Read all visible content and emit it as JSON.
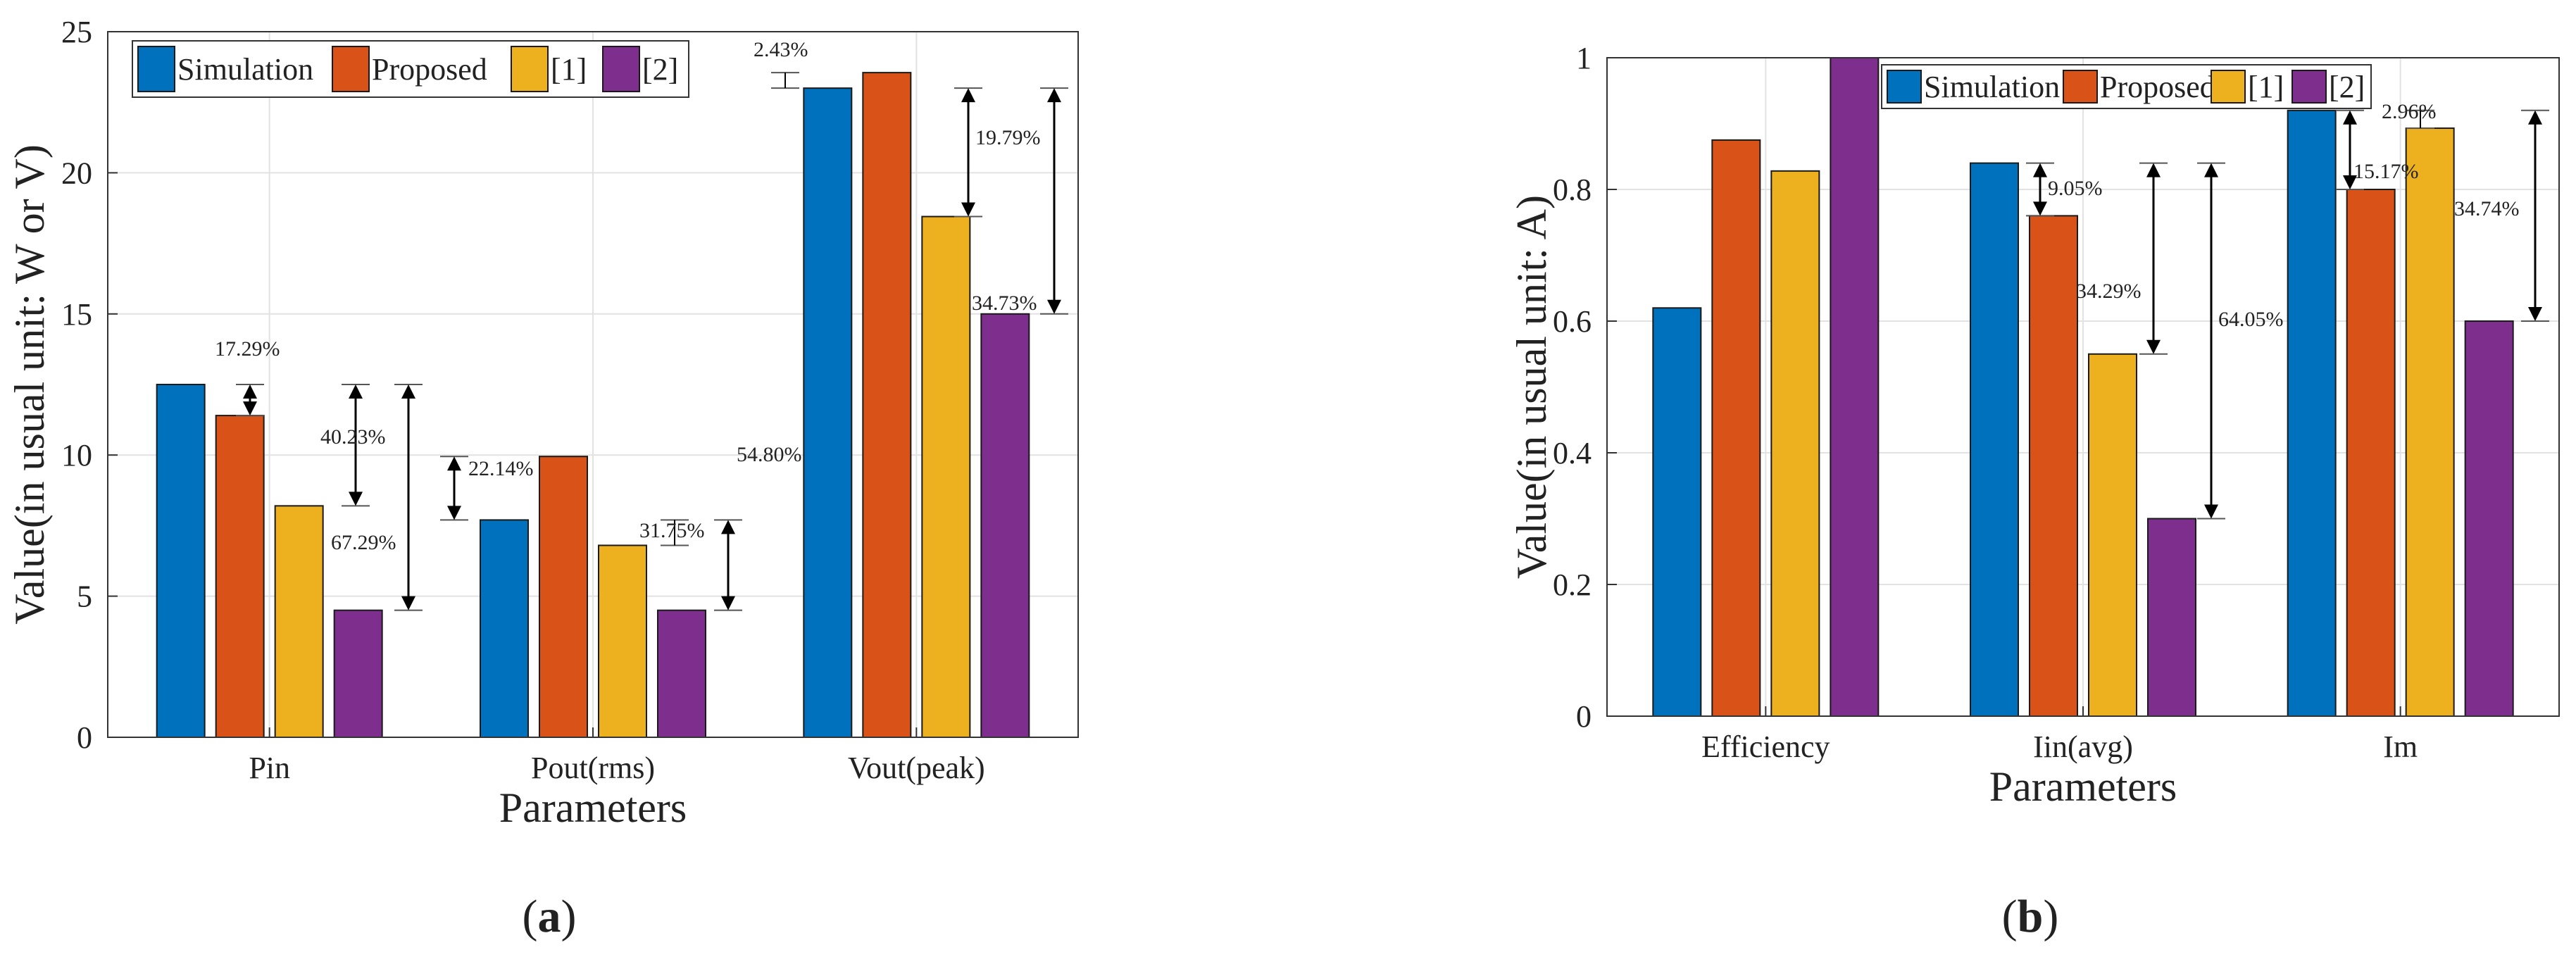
{
  "colors": {
    "simulation": "#0072BD",
    "proposed": "#D95319",
    "ref1": "#EDB120",
    "ref2": "#7E2F8E"
  },
  "chart_data": [
    {
      "type": "bar",
      "panel_label": "a",
      "xlabel": "Parameters",
      "ylabel": "Value(in usual unit: W or V)",
      "categories": [
        "Pin",
        "Pout(rms)",
        "Vout(peak)"
      ],
      "ylim": [
        0,
        25
      ],
      "yticks": [
        "0",
        "5",
        "10",
        "15",
        "20",
        "25"
      ],
      "grid": true,
      "legend_position": "top-left",
      "series": [
        {
          "name": "Simulation",
          "values": [
            12.5,
            7.7,
            23.0
          ]
        },
        {
          "name": "Proposed",
          "values": [
            11.4,
            9.95,
            23.55
          ]
        },
        {
          "name": "[1]",
          "values": [
            8.2,
            6.8,
            18.45
          ]
        },
        {
          "name": "[2]",
          "values": [
            4.5,
            4.5,
            15.0
          ]
        }
      ],
      "annotations": [
        {
          "text": "17.29%",
          "category": 0,
          "series": 1
        },
        {
          "text": "40.23%",
          "category": 0,
          "series": 2
        },
        {
          "text": "67.29%",
          "category": 0,
          "series": 3
        },
        {
          "text": "22.14%",
          "category": 1,
          "series": 1
        },
        {
          "text": "31.75%",
          "category": 1,
          "series": 2
        },
        {
          "text": "54.80%",
          "category": 1,
          "series": 3
        },
        {
          "text": "2.43%",
          "category": 2,
          "series": 1
        },
        {
          "text": "19.79%",
          "category": 2,
          "series": 2
        },
        {
          "text": "34.73%",
          "category": 2,
          "series": 3
        }
      ]
    },
    {
      "type": "bar",
      "panel_label": "b",
      "xlabel": "Parameters",
      "ylabel": "Value(in usual unit: A)",
      "categories": [
        "Efficiency",
        "Iin(avg)",
        "Im"
      ],
      "ylim": [
        0,
        1
      ],
      "yticks": [
        "0",
        "0.2",
        "0.4",
        "0.6",
        "0.8",
        "1"
      ],
      "grid": true,
      "legend_position": "top",
      "series": [
        {
          "name": "Simulation",
          "values": [
            0.62,
            0.84,
            0.92
          ]
        },
        {
          "name": "Proposed",
          "values": [
            0.875,
            0.76,
            0.8
          ]
        },
        {
          "name": "[1]",
          "values": [
            0.828,
            0.55,
            0.893
          ]
        },
        {
          "name": "[2]",
          "values": [
            1.0,
            0.3,
            0.6
          ]
        }
      ],
      "annotations": [
        {
          "text": "9.05%",
          "category": 1,
          "series": 1
        },
        {
          "text": "34.29%",
          "category": 1,
          "series": 2
        },
        {
          "text": "64.05%",
          "category": 1,
          "series": 3
        },
        {
          "text": "15.17%",
          "category": 2,
          "series": 1
        },
        {
          "text": "2.96%",
          "category": 2,
          "series": 2
        },
        {
          "text": "34.74%",
          "category": 2,
          "series": 3
        }
      ]
    }
  ]
}
